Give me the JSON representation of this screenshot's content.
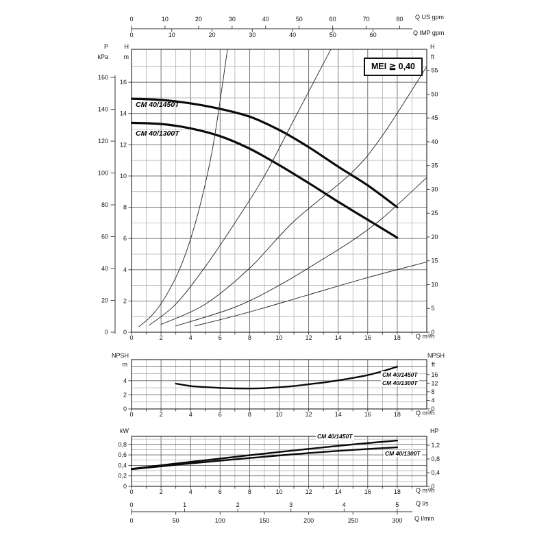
{
  "badge": {
    "text": "MEI ≧ 0,40"
  },
  "labels": {
    "p": "P",
    "kpa": "kPa",
    "h_left": "H",
    "m_left": "m",
    "h_right": "H",
    "ft_right": "ft",
    "q_us": "Q US gpm",
    "q_imp": "Q IMP gpm",
    "q_m3h_main": "Q m³/h",
    "q_m3h_npsh": "Q m³/h",
    "q_m3h_power": "Q m³/h",
    "npsh_left": "NPSH",
    "npsh_m": "m",
    "npsh_right": "NPSH",
    "npsh_ft": "ft",
    "kw": "kW",
    "hp": "HP",
    "q_ls": "Q l/s",
    "q_lmin": "Q l/min",
    "head_label_1450": "CM 40/1450T",
    "head_label_1300": "CM 40/1300T",
    "npsh_label_1450": "CM 40/1450T",
    "npsh_label_1300": "CM 40/1300T",
    "power_label_1450": "CM 40/1450T",
    "power_label_1300": "CM 40/1300T"
  },
  "flow_scales": {
    "us": {
      "label": "Q US gpm",
      "ticks": [
        [
          0,
          "0"
        ],
        [
          10,
          "10"
        ],
        [
          20,
          "20"
        ],
        [
          30,
          "30"
        ],
        [
          40,
          "40"
        ],
        [
          50,
          "50"
        ],
        [
          60,
          "60"
        ],
        [
          70,
          "70"
        ],
        [
          80,
          "80"
        ]
      ]
    },
    "imp": {
      "label": "Q IMP gpm",
      "ticks": [
        [
          0,
          "0"
        ],
        [
          10,
          "10"
        ],
        [
          20,
          "20"
        ],
        [
          30,
          "30"
        ],
        [
          40,
          "40"
        ],
        [
          50,
          "50"
        ],
        [
          60,
          "60"
        ]
      ]
    },
    "ls": {
      "label": "Q l/s",
      "ticks": [
        [
          0,
          "0"
        ],
        [
          1,
          "1"
        ],
        [
          2,
          "2"
        ],
        [
          3,
          "3"
        ],
        [
          4,
          "4"
        ],
        [
          5,
          "5"
        ]
      ]
    },
    "lmin": {
      "label": "Q l/min",
      "ticks": [
        [
          0,
          "0"
        ],
        [
          50,
          "50"
        ],
        [
          100,
          "100"
        ],
        [
          150,
          "150"
        ],
        [
          200,
          "200"
        ],
        [
          250,
          "250"
        ],
        [
          300,
          "300"
        ]
      ]
    }
  },
  "chart_data": [
    {
      "id": "head",
      "type": "line",
      "xlabel": "Q m³/h",
      "x_range": [
        0,
        20
      ],
      "x_ticks": [
        [
          0,
          "0"
        ],
        [
          2,
          "2"
        ],
        [
          4,
          "4"
        ],
        [
          6,
          "6"
        ],
        [
          8,
          "8"
        ],
        [
          10,
          "10"
        ],
        [
          12,
          "12"
        ],
        [
          14,
          "14"
        ],
        [
          16,
          "16"
        ],
        [
          18,
          "18"
        ]
      ],
      "y_axis_h_m": {
        "label": "H m",
        "range": [
          0,
          18.1
        ],
        "ticks": [
          [
            0,
            "0"
          ],
          [
            2,
            "2"
          ],
          [
            4,
            "4"
          ],
          [
            6,
            "6"
          ],
          [
            8,
            "8"
          ],
          [
            10,
            "10"
          ],
          [
            12,
            "12"
          ],
          [
            14,
            "14"
          ],
          [
            16,
            "16"
          ]
        ]
      },
      "y_axis_p_kpa": {
        "label": "P kPa",
        "range": [
          0,
          160
        ],
        "ticks": [
          [
            0,
            "0"
          ],
          [
            20,
            "20"
          ],
          [
            40,
            "40"
          ],
          [
            60,
            "60"
          ],
          [
            80,
            "80"
          ],
          [
            100,
            "100"
          ],
          [
            120,
            "120"
          ],
          [
            140,
            "140"
          ],
          [
            160,
            "160"
          ]
        ]
      },
      "y_axis_ft": {
        "label": "H ft",
        "ticks": [
          [
            0,
            "0"
          ],
          [
            5,
            "5"
          ],
          [
            10,
            "10"
          ],
          [
            15,
            "15"
          ],
          [
            20,
            "20"
          ],
          [
            25,
            "25"
          ],
          [
            30,
            "30"
          ],
          [
            35,
            "35"
          ],
          [
            40,
            "40"
          ],
          [
            45,
            "45"
          ],
          [
            50,
            "50"
          ],
          [
            55,
            "55"
          ]
        ]
      },
      "grid": true,
      "series": [
        {
          "name": "CM 40/1450T",
          "style": "thick",
          "points": [
            [
              0,
              14.95
            ],
            [
              2,
              14.87
            ],
            [
              4,
              14.65
            ],
            [
              6,
              14.3
            ],
            [
              8,
              13.8
            ],
            [
              10,
              12.95
            ],
            [
              12,
              11.85
            ],
            [
              14,
              10.6
            ],
            [
              16,
              9.4
            ],
            [
              18,
              8.0
            ]
          ]
        },
        {
          "name": "CM 40/1300T",
          "style": "thick",
          "points": [
            [
              0,
              13.4
            ],
            [
              2,
              13.33
            ],
            [
              4,
              13.05
            ],
            [
              6,
              12.55
            ],
            [
              8,
              11.75
            ],
            [
              10,
              10.7
            ],
            [
              12,
              9.55
            ],
            [
              14,
              8.35
            ],
            [
              16,
              7.2
            ],
            [
              18,
              6.05
            ]
          ]
        },
        {
          "name": "",
          "style": "thin",
          "points": [
            [
              0.5,
              0.35
            ],
            [
              1.5,
              1.2
            ],
            [
              2.5,
              2.6
            ],
            [
              3.5,
              4.6
            ],
            [
              4.5,
              7.6
            ],
            [
              5.5,
              11.8
            ],
            [
              6.5,
              18.1
            ]
          ]
        },
        {
          "name": "",
          "style": "thin",
          "points": [
            [
              1.2,
              0.45
            ],
            [
              3,
              1.8
            ],
            [
              5,
              4.2
            ],
            [
              7,
              7.0
            ],
            [
              9,
              10.0
            ],
            [
              11,
              13.6
            ],
            [
              13.5,
              18.1
            ]
          ]
        },
        {
          "name": "",
          "style": "thin",
          "points": [
            [
              2,
              0.5
            ],
            [
              5,
              1.8
            ],
            [
              8,
              4.1
            ],
            [
              11,
              7.1
            ],
            [
              14.9,
              10.2
            ],
            [
              17,
              12.6
            ],
            [
              20,
              17.0
            ]
          ]
        },
        {
          "name": "",
          "style": "thin",
          "points": [
            [
              3,
              0.4
            ],
            [
              7,
              1.6
            ],
            [
              10,
              3.0
            ],
            [
              13,
              4.7
            ],
            [
              15,
              5.9
            ],
            [
              17,
              7.3
            ],
            [
              20,
              9.9
            ]
          ]
        },
        {
          "name": "",
          "style": "thin",
          "points": [
            [
              4.3,
              0.4
            ],
            [
              8,
              1.3
            ],
            [
              12,
              2.4
            ],
            [
              16,
              3.5
            ],
            [
              20,
              4.5
            ]
          ]
        }
      ]
    },
    {
      "id": "npsh",
      "type": "line",
      "xlabel": "Q m³/h",
      "x_range": [
        0,
        20
      ],
      "x_ticks": [
        [
          0,
          "0"
        ],
        [
          2,
          "2"
        ],
        [
          4,
          "4"
        ],
        [
          6,
          "6"
        ],
        [
          8,
          "8"
        ],
        [
          10,
          "10"
        ],
        [
          12,
          "12"
        ],
        [
          14,
          "14"
        ],
        [
          16,
          "16"
        ],
        [
          18,
          "18"
        ]
      ],
      "y_axis_m": {
        "label": "NPSH m",
        "range": [
          0,
          7
        ],
        "ticks": [
          [
            0,
            "0"
          ],
          [
            2,
            "2"
          ],
          [
            4,
            "4"
          ]
        ]
      },
      "y_axis_ft": {
        "label": "NPSH ft",
        "ticks": [
          [
            0,
            "0"
          ],
          [
            4,
            "4"
          ],
          [
            8,
            "8"
          ],
          [
            12,
            "12"
          ],
          [
            16,
            "16"
          ]
        ]
      },
      "grid": true,
      "series": [
        {
          "name": "CM 40/1450T / CM 40/1300T",
          "style": "medium",
          "points": [
            [
              3,
              3.6
            ],
            [
              4,
              3.25
            ],
            [
              5,
              3.1
            ],
            [
              6,
              2.98
            ],
            [
              7,
              2.92
            ],
            [
              8,
              2.9
            ],
            [
              9,
              2.95
            ],
            [
              10,
              3.08
            ],
            [
              11,
              3.25
            ],
            [
              12,
              3.5
            ],
            [
              13,
              3.75
            ],
            [
              14,
              4.05
            ],
            [
              15,
              4.4
            ],
            [
              16,
              4.8
            ],
            [
              17,
              5.35
            ],
            [
              18,
              6.0
            ]
          ]
        }
      ]
    },
    {
      "id": "power",
      "type": "line",
      "xlabel": "Q m³/h",
      "x_range": [
        0,
        20
      ],
      "x_ticks": [
        [
          0,
          "0"
        ],
        [
          2,
          "2"
        ],
        [
          4,
          "4"
        ],
        [
          6,
          "6"
        ],
        [
          8,
          "8"
        ],
        [
          10,
          "10"
        ],
        [
          12,
          "12"
        ],
        [
          14,
          "14"
        ],
        [
          16,
          "16"
        ],
        [
          18,
          "18"
        ]
      ],
      "y_axis_kw": {
        "label": "kW",
        "range": [
          0,
          0.95
        ],
        "ticks": [
          [
            0,
            "0"
          ],
          [
            0.2,
            "0,2"
          ],
          [
            0.4,
            "0,4"
          ],
          [
            0.6,
            "0,6"
          ],
          [
            0.8,
            "0,8"
          ]
        ]
      },
      "y_axis_hp": {
        "label": "HP",
        "ticks": [
          [
            0,
            "0"
          ],
          [
            0.4,
            "0,4"
          ],
          [
            0.8,
            "0,8"
          ],
          [
            1.2,
            "1,2"
          ]
        ]
      },
      "grid": true,
      "series": [
        {
          "name": "CM 40/1450T",
          "style": "medium",
          "points": [
            [
              0,
              0.335
            ],
            [
              3,
              0.435
            ],
            [
              6,
              0.53
            ],
            [
              9,
              0.625
            ],
            [
              12,
              0.715
            ],
            [
              15,
              0.8
            ],
            [
              18,
              0.875
            ]
          ]
        },
        {
          "name": "CM 40/1300T",
          "style": "medium",
          "points": [
            [
              0,
              0.325
            ],
            [
              3,
              0.41
            ],
            [
              6,
              0.49
            ],
            [
              9,
              0.565
            ],
            [
              12,
              0.635
            ],
            [
              15,
              0.695
            ],
            [
              18,
              0.745
            ]
          ]
        }
      ]
    }
  ],
  "colors": {
    "curve": "#0a0a0a",
    "thin_curve": "#2b2b2b",
    "grid_minor": "#b0b0b0",
    "grid_major": "#636363",
    "border": "#2e2e2e",
    "axis": "#333333"
  }
}
